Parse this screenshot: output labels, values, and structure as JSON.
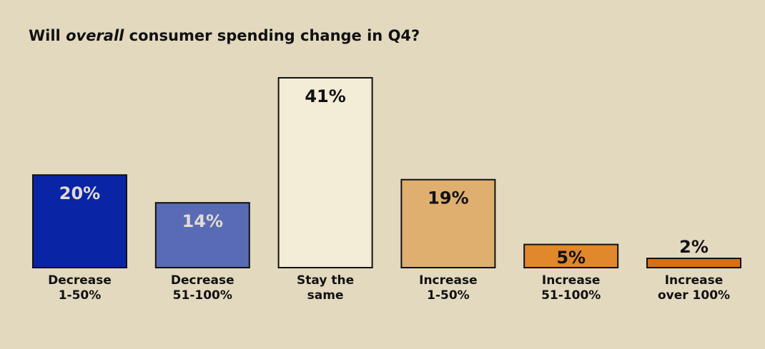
{
  "title": {
    "before": "Will ",
    "emphasis": "overall",
    "after": " consumer spending change in Q4?"
  },
  "chart_data": {
    "type": "bar",
    "categories": [
      [
        "Decrease",
        "1-50%"
      ],
      [
        "Decrease",
        "51-100%"
      ],
      [
        "Stay the",
        "same"
      ],
      [
        "Increase",
        "1-50%"
      ],
      [
        "Increase",
        "51-100%"
      ],
      [
        "Increase",
        "over 100%"
      ]
    ],
    "values": [
      20,
      14,
      41,
      19,
      5,
      2
    ],
    "value_labels": [
      "20%",
      "14%",
      "41%",
      "19%",
      "5%",
      "2%"
    ],
    "bar_colors": [
      "#0a24a6",
      "#5a6bb5",
      "#f3ecd6",
      "#dfaf70",
      "#e1872c",
      "#d86f12"
    ],
    "label_colors": [
      "#e2dcd0",
      "#e2dcd0",
      "#111111",
      "#111111",
      "#111111",
      "#111111"
    ],
    "ylim": [
      0,
      41
    ],
    "grid": false,
    "legend": "none"
  }
}
